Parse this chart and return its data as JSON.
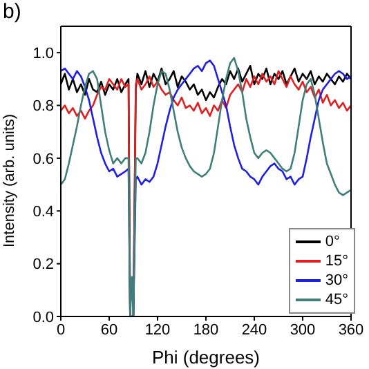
{
  "chart_data": {
    "type": "line",
    "annotations": [
      "b)"
    ],
    "xlabel": "Phi (degrees)",
    "ylabel": "Intensity (arb. units)",
    "x": [
      0,
      5,
      10,
      15,
      20,
      25,
      30,
      35,
      40,
      45,
      50,
      55,
      60,
      65,
      70,
      75,
      80,
      84,
      86,
      88,
      90,
      93,
      95,
      100,
      105,
      110,
      115,
      120,
      125,
      130,
      135,
      140,
      145,
      150,
      155,
      160,
      165,
      170,
      175,
      180,
      185,
      190,
      195,
      200,
      205,
      210,
      215,
      220,
      225,
      230,
      235,
      240,
      245,
      250,
      255,
      260,
      265,
      270,
      275,
      280,
      285,
      290,
      295,
      300,
      305,
      310,
      315,
      320,
      325,
      330,
      335,
      340,
      345,
      350,
      355,
      360
    ],
    "xlim": [
      0,
      360
    ],
    "xticks": [
      0,
      60,
      120,
      180,
      240,
      300,
      360
    ],
    "ylim": [
      0,
      1.1
    ],
    "yticks": [
      {
        "value": 0,
        "label": "0.0"
      },
      {
        "value": 0.2,
        "label": "0.2"
      },
      {
        "value": 0.4,
        "label": "0.4"
      },
      {
        "value": 0.6,
        "label": "0.6"
      },
      {
        "value": 0.8,
        "label": "0.8"
      },
      {
        "value": 1,
        "label": "1.0"
      }
    ],
    "legend": "bottom right",
    "marker": "none",
    "line_style": "solid",
    "series": [
      {
        "name": "0°",
        "color": "#000000",
        "values": [
          0.88,
          0.92,
          0.86,
          0.9,
          0.85,
          0.88,
          0.84,
          0.9,
          0.86,
          0.85,
          0.89,
          0.84,
          0.88,
          0.86,
          0.9,
          0.85,
          0.88,
          0.9,
          0,
          0,
          0,
          0.86,
          0.92,
          0.88,
          0.93,
          0.87,
          0.92,
          0.89,
          0.94,
          0.88,
          0.9,
          0.93,
          0.87,
          0.91,
          0.89,
          0.86,
          0.88,
          0.84,
          0.86,
          0.82,
          0.85,
          0.83,
          0.87,
          0.9,
          0.88,
          0.93,
          0.9,
          0.94,
          0.89,
          0.92,
          0.95,
          0.88,
          0.92,
          0.9,
          0.94,
          0.88,
          0.92,
          0.9,
          0.93,
          0.88,
          0.91,
          0.94,
          0.89,
          0.92,
          0.9,
          0.93,
          0.88,
          0.91,
          0.89,
          0.92,
          0.9,
          0.88,
          0.91,
          0.89,
          0.92,
          0.9
        ]
      },
      {
        "name": "15°",
        "color": "#e02020",
        "values": [
          0.78,
          0.8,
          0.77,
          0.79,
          0.76,
          0.78,
          0.75,
          0.78,
          0.8,
          0.84,
          0.87,
          0.86,
          0.9,
          0.88,
          0.86,
          0.9,
          0.87,
          0.88,
          0,
          0,
          0,
          0.88,
          0.9,
          0.86,
          0.88,
          0.91,
          0.87,
          0.89,
          0.86,
          0.84,
          0.85,
          0.82,
          0.8,
          0.83,
          0.79,
          0.8,
          0.78,
          0.81,
          0.77,
          0.79,
          0.76,
          0.8,
          0.78,
          0.82,
          0.79,
          0.84,
          0.86,
          0.88,
          0.85,
          0.9,
          0.87,
          0.91,
          0.88,
          0.92,
          0.89,
          0.91,
          0.88,
          0.93,
          0.9,
          0.87,
          0.91,
          0.88,
          0.86,
          0.89,
          0.85,
          0.87,
          0.83,
          0.86,
          0.81,
          0.84,
          0.8,
          0.82,
          0.79,
          0.81,
          0.78,
          0.8
        ]
      },
      {
        "name": "30°",
        "color": "#2020e0",
        "values": [
          0.93,
          0.94,
          0.92,
          0.9,
          0.93,
          0.91,
          0.87,
          0.82,
          0.75,
          0.68,
          0.62,
          0.58,
          0.55,
          0.56,
          0.53,
          0.54,
          0.55,
          0.56,
          0,
          0,
          0,
          0.52,
          0.53,
          0.5,
          0.52,
          0.51,
          0.53,
          0.58,
          0.65,
          0.72,
          0.78,
          0.83,
          0.86,
          0.88,
          0.9,
          0.92,
          0.94,
          0.95,
          0.93,
          0.96,
          0.97,
          0.95,
          0.9,
          0.85,
          0.8,
          0.72,
          0.65,
          0.6,
          0.56,
          0.55,
          0.53,
          0.52,
          0.5,
          0.53,
          0.55,
          0.57,
          0.58,
          0.56,
          0.55,
          0.52,
          0.53,
          0.5,
          0.52,
          0.53,
          0.6,
          0.68,
          0.75,
          0.82,
          0.86,
          0.88,
          0.9,
          0.92,
          0.93,
          0.92,
          0.9,
          0.91
        ]
      },
      {
        "name": "45°",
        "color": "#3f7f78",
        "values": [
          0.5,
          0.52,
          0.58,
          0.65,
          0.72,
          0.8,
          0.87,
          0.92,
          0.93,
          0.9,
          0.8,
          0.7,
          0.63,
          0.58,
          0.6,
          0.58,
          0.6,
          0.6,
          0,
          0.15,
          0,
          0.6,
          0.6,
          0.58,
          0.62,
          0.7,
          0.8,
          0.88,
          0.93,
          0.92,
          0.86,
          0.78,
          0.7,
          0.64,
          0.6,
          0.57,
          0.55,
          0.54,
          0.53,
          0.54,
          0.56,
          0.62,
          0.72,
          0.82,
          0.9,
          0.96,
          0.98,
          0.93,
          0.85,
          0.75,
          0.68,
          0.62,
          0.6,
          0.62,
          0.63,
          0.62,
          0.6,
          0.58,
          0.56,
          0.55,
          0.56,
          0.62,
          0.72,
          0.82,
          0.88,
          0.9,
          0.84,
          0.75,
          0.66,
          0.58,
          0.54,
          0.5,
          0.47,
          0.46,
          0.47,
          0.48
        ]
      }
    ]
  }
}
